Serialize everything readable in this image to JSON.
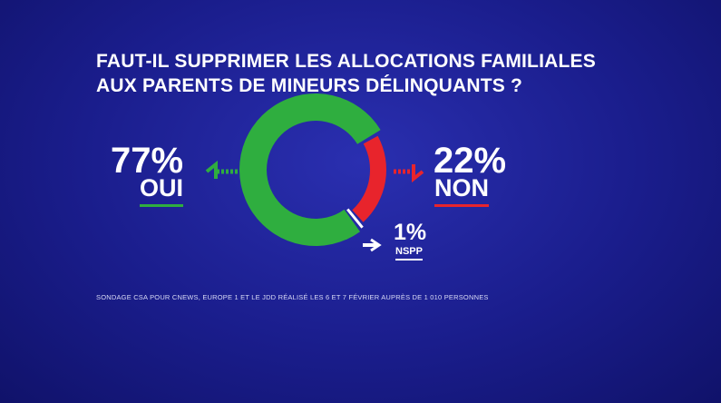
{
  "chart_data": {
    "type": "pie",
    "style": "donut",
    "title_lines": [
      "FAUT-IL SUPPRIMER LES ALLOCATIONS FAMILIALES",
      "AUX PARENTS DE MINEURS DÉLINQUANTS ?"
    ],
    "slices": [
      {
        "label": "OUI",
        "value": 77,
        "display": "77%",
        "color": "#2fae3f"
      },
      {
        "label": "NON",
        "value": 22,
        "display": "22%",
        "color": "#e8242c"
      },
      {
        "label": "NSPP",
        "value": 1,
        "display": "1%",
        "color": "#ffffff"
      }
    ],
    "source": "SONDAGE CSA POUR CNEWS, EUROPE 1 ET LE JDD RÉALISÉ LES 6 ET 7 FÉVRIER AUPRÈS DE 1 010 PERSONNES"
  }
}
